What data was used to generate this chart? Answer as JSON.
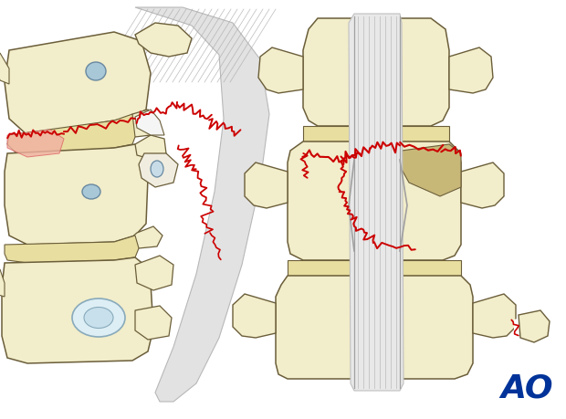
{
  "bg_color": "#ffffff",
  "bone_fill": "#f2edca",
  "bone_fill2": "#ede8b8",
  "bone_outline": "#6b5e3a",
  "disc_fill": "#e8dea0",
  "spinal_cord_fill": "#e0e0e0",
  "spinal_cord_line": "#c8c8c8",
  "fracture_color": "#cc0000",
  "lig_bg": "#e8e8e8",
  "lig_stripe": "#b8b8b8",
  "pedicle_fill": "#a8c8d8",
  "pedicle_outline": "#6888a0",
  "red_area": "#f0b0a0",
  "ao_color": "#003399",
  "ao_text": "AO"
}
